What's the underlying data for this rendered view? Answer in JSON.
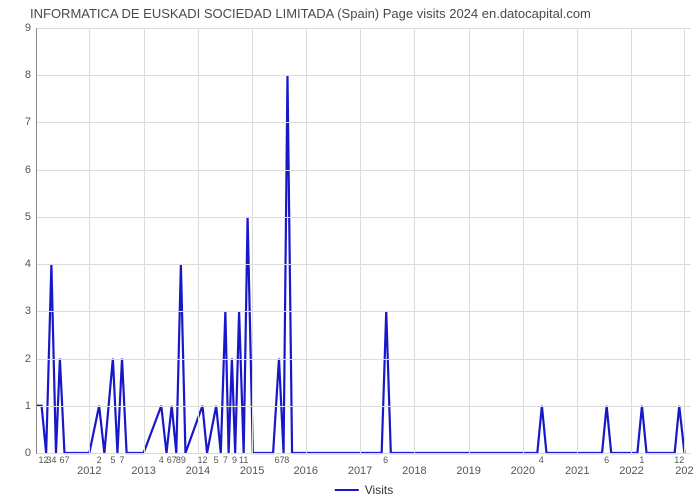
{
  "chart": {
    "type": "line",
    "title": "INFORMATICA DE EUSKADI SOCIEDAD LIMITADA (Spain) Page visits 2024 en.datocapital.com",
    "title_fontsize": 13,
    "title_color": "#4a4a4a",
    "background_color": "#ffffff",
    "grid_color": "#dcdcdc",
    "axis_color": "#888888",
    "line_color": "#1818c8",
    "line_width": 2.2,
    "xlabel": "Visits",
    "label_fontsize": 12,
    "ylim": [
      0,
      9
    ],
    "ytick_step": 1,
    "yticks": [
      0,
      1,
      2,
      3,
      4,
      5,
      6,
      7,
      8,
      9
    ],
    "x_year_labels": [
      "2012",
      "2013",
      "2014",
      "2015",
      "2016",
      "2017",
      "2018",
      "2019",
      "2020",
      "2021",
      "2022",
      "202"
    ],
    "x_year_positions_pct": [
      8.0,
      16.3,
      24.6,
      32.9,
      41.1,
      49.4,
      57.7,
      66.0,
      74.3,
      82.6,
      90.9,
      99.0
    ],
    "x_minor_labels": [
      {
        "t": "12",
        "p": 1.0
      },
      {
        "t": "34",
        "p": 2.2
      },
      {
        "t": "67",
        "p": 4.2
      },
      {
        "t": "2",
        "p": 9.5
      },
      {
        "t": "5",
        "p": 11.6
      },
      {
        "t": "7",
        "p": 13.0
      },
      {
        "t": "4",
        "p": 19.0
      },
      {
        "t": "67",
        "p": 20.6
      },
      {
        "t": "89",
        "p": 22.0
      },
      {
        "t": "12",
        "p": 25.3
      },
      {
        "t": "5",
        "p": 27.4
      },
      {
        "t": "7",
        "p": 28.8
      },
      {
        "t": "9",
        "p": 30.2
      },
      {
        "t": "11",
        "p": 31.6
      },
      {
        "t": "67",
        "p": 37.1
      },
      {
        "t": "8",
        "p": 38.2
      },
      {
        "t": "6",
        "p": 53.3
      },
      {
        "t": "4",
        "p": 77.1
      },
      {
        "t": "6",
        "p": 87.1
      },
      {
        "t": "1",
        "p": 92.5
      },
      {
        "t": "12",
        "p": 98.2
      }
    ],
    "series": {
      "name": "Visits",
      "points": [
        [
          0.0,
          1.0
        ],
        [
          0.7,
          1.0
        ],
        [
          1.4,
          0.0
        ],
        [
          2.2,
          4.0
        ],
        [
          2.9,
          0.0
        ],
        [
          3.5,
          2.0
        ],
        [
          4.2,
          0.0
        ],
        [
          8.0,
          0.0
        ],
        [
          9.5,
          1.0
        ],
        [
          10.3,
          0.0
        ],
        [
          11.6,
          2.0
        ],
        [
          12.3,
          0.0
        ],
        [
          13.0,
          2.0
        ],
        [
          13.7,
          0.0
        ],
        [
          16.3,
          0.0
        ],
        [
          19.0,
          1.0
        ],
        [
          19.8,
          0.0
        ],
        [
          20.6,
          1.0
        ],
        [
          21.3,
          0.0
        ],
        [
          22.0,
          4.0
        ],
        [
          22.7,
          0.0
        ],
        [
          25.3,
          1.0
        ],
        [
          26.0,
          0.0
        ],
        [
          27.4,
          1.0
        ],
        [
          28.1,
          0.0
        ],
        [
          28.8,
          3.0
        ],
        [
          29.3,
          0.0
        ],
        [
          29.8,
          2.0
        ],
        [
          30.3,
          0.0
        ],
        [
          30.9,
          3.0
        ],
        [
          31.6,
          0.0
        ],
        [
          32.2,
          5.0
        ],
        [
          33.0,
          0.0
        ],
        [
          36.1,
          0.0
        ],
        [
          37.0,
          2.0
        ],
        [
          37.7,
          0.0
        ],
        [
          38.3,
          8.0
        ],
        [
          39.0,
          0.0
        ],
        [
          41.1,
          0.0
        ],
        [
          49.4,
          0.0
        ],
        [
          52.7,
          0.0
        ],
        [
          53.4,
          3.0
        ],
        [
          54.1,
          0.0
        ],
        [
          57.7,
          0.0
        ],
        [
          66.0,
          0.0
        ],
        [
          74.3,
          0.0
        ],
        [
          76.5,
          0.0
        ],
        [
          77.2,
          1.0
        ],
        [
          77.9,
          0.0
        ],
        [
          82.6,
          0.0
        ],
        [
          86.4,
          0.0
        ],
        [
          87.1,
          1.0
        ],
        [
          87.8,
          0.0
        ],
        [
          90.9,
          0.0
        ],
        [
          91.8,
          0.0
        ],
        [
          92.5,
          1.0
        ],
        [
          93.2,
          0.0
        ],
        [
          97.5,
          0.0
        ],
        [
          98.2,
          1.0
        ],
        [
          99.0,
          0.0
        ]
      ]
    }
  }
}
